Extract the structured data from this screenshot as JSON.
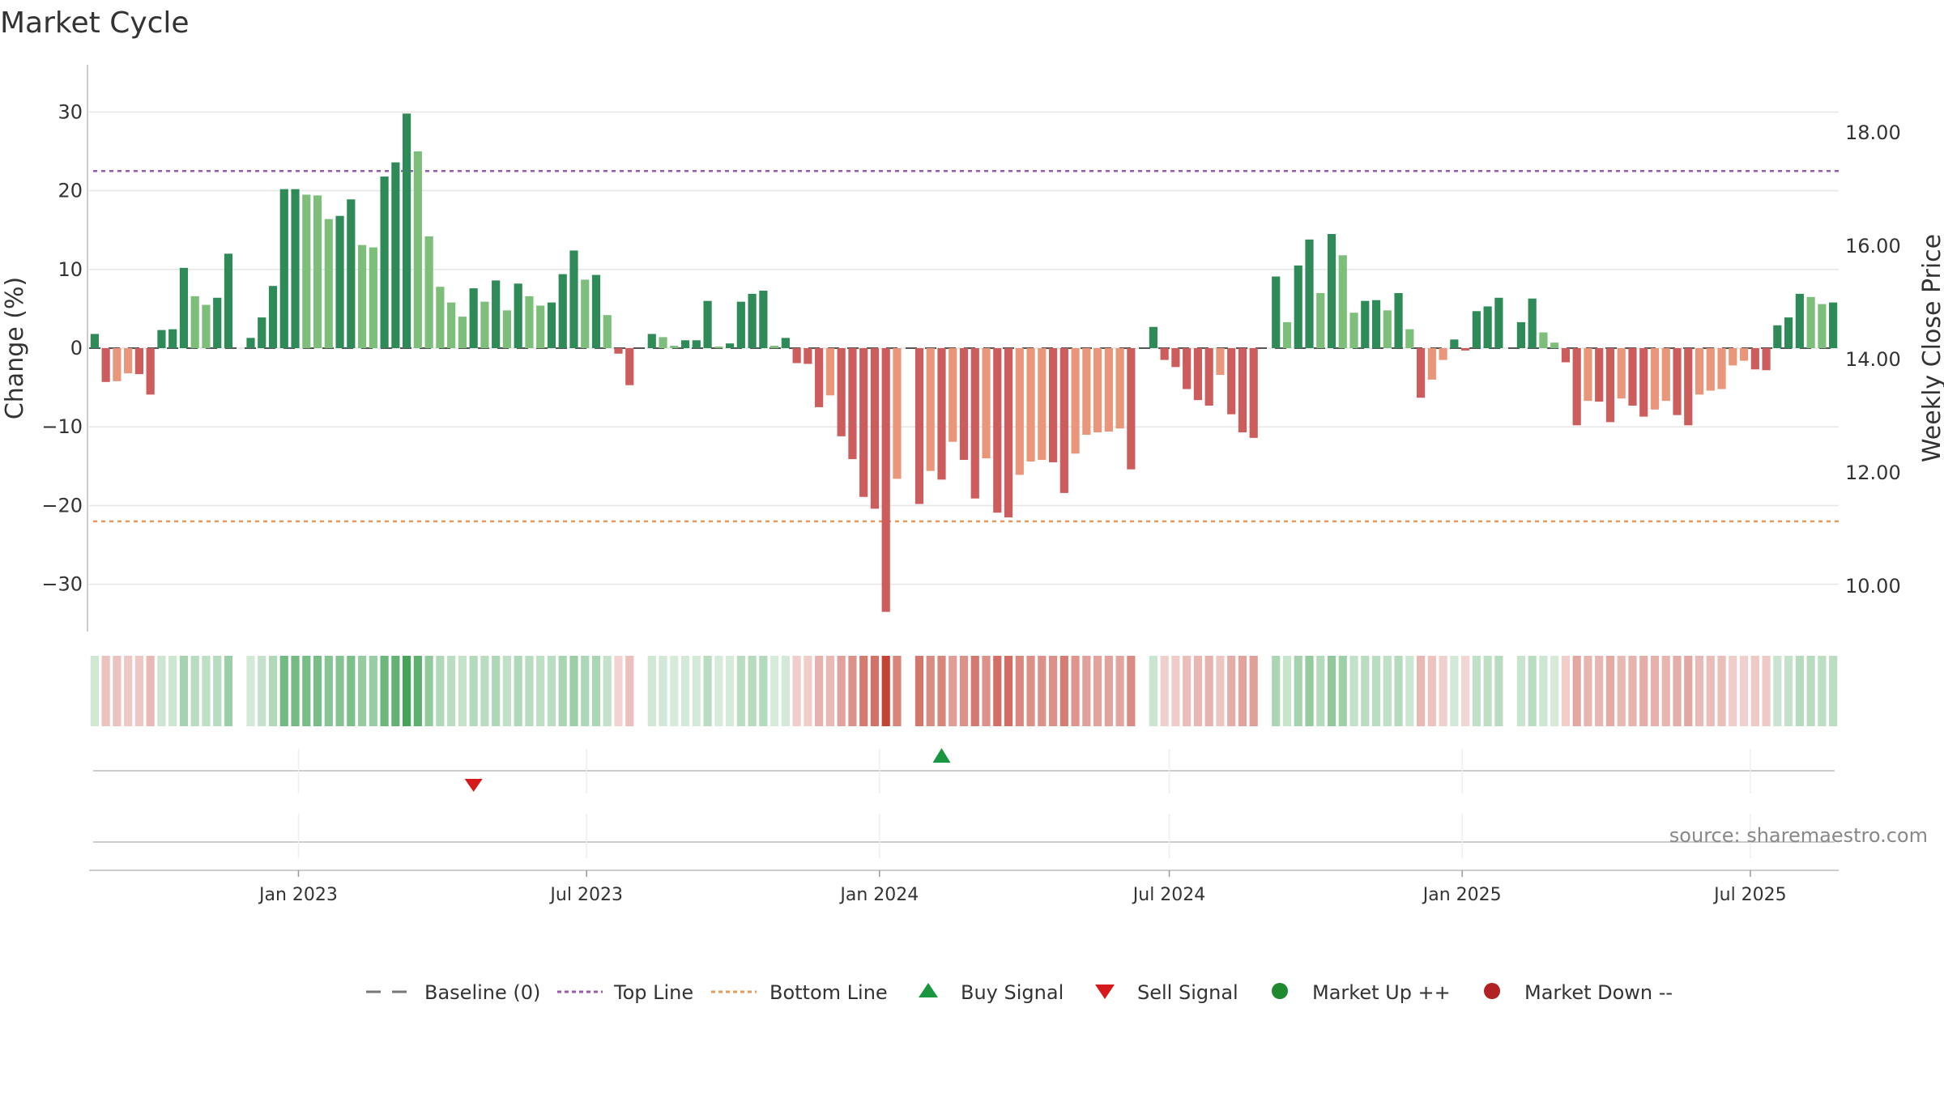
{
  "chart_data": {
    "type": "bar",
    "title": "Market Cycle",
    "ylabel": "Change (%)",
    "y2label": "Weekly Close Price",
    "ylim": [
      -36,
      36
    ],
    "y_ticks": [
      30,
      20,
      10,
      0,
      -10,
      -20,
      -30
    ],
    "y_tick_labels": [
      "30",
      "20",
      "10",
      "0",
      "−10",
      "−20",
      "−30"
    ],
    "y2lim": [
      9.2,
      19.2
    ],
    "y2_ticks": [
      18,
      16,
      14,
      12,
      10
    ],
    "y2_tick_labels": [
      "18.00",
      "16.00",
      "14.00",
      "12.00",
      "10.00"
    ],
    "top_line": 22.5,
    "bottom_line": -22,
    "x_start": "2022-08-26",
    "x_ticks": [
      {
        "date": "2023-01-01",
        "label": "Jan 2023"
      },
      {
        "date": "2023-07-01",
        "label": "Jul 2023"
      },
      {
        "date": "2024-01-01",
        "label": "Jan 2024"
      },
      {
        "date": "2024-07-01",
        "label": "Jul 2024"
      },
      {
        "date": "2025-01-01",
        "label": "Jan 2025"
      },
      {
        "date": "2025-07-01",
        "label": "Jul 2025"
      }
    ],
    "grid": true,
    "values": [
      1.8,
      -4.3,
      -4.2,
      -3.2,
      -3.3,
      -5.9,
      2.3,
      2.4,
      10.2,
      6.6,
      5.5,
      6.4,
      12,
      0,
      1.3,
      3.9,
      7.9,
      20.2,
      20.2,
      19.5,
      19.4,
      16.4,
      16.8,
      18.9,
      13.1,
      12.8,
      21.8,
      23.6,
      29.8,
      25,
      14.2,
      7.8,
      5.8,
      4,
      7.6,
      5.9,
      8.6,
      4.8,
      8.2,
      6.6,
      5.4,
      5.8,
      9.4,
      12.4,
      8.7,
      9.3,
      4.2,
      -0.7,
      -4.7,
      0,
      1.8,
      1.4,
      0.3,
      1,
      1,
      6,
      0.2,
      0.6,
      5.9,
      6.9,
      7.3,
      0.3,
      1.3,
      -1.9,
      -2,
      -7.5,
      -6,
      -11.2,
      -14.1,
      -18.9,
      -20.4,
      -33.5,
      -16.6,
      0,
      -19.8,
      -15.6,
      -16.7,
      -11.9,
      -14.2,
      -19.1,
      -14,
      -20.9,
      -21.5,
      -16.1,
      -14.4,
      -14.2,
      -14.5,
      -18.4,
      -13.4,
      -11,
      -10.7,
      -10.6,
      -10.2,
      -15.4,
      0,
      2.7,
      -1.5,
      -2.4,
      -5.2,
      -6.6,
      -7.3,
      -3.4,
      -8.4,
      -10.7,
      -11.4,
      0,
      9.1,
      3.3,
      10.5,
      13.8,
      7,
      14.5,
      11.8,
      4.5,
      6,
      6.1,
      4.8,
      7,
      2.4,
      -6.3,
      -4,
      -1.5,
      1.1,
      -0.3,
      4.7,
      5.3,
      6.4,
      0,
      3.3,
      6.3,
      2,
      0.7,
      -1.8,
      -9.8,
      -6.7,
      -6.8,
      -9.4,
      -6.4,
      -7.3,
      -8.7,
      -7.8,
      -6.7,
      -8.5,
      -9.8,
      -5.9,
      -5.4,
      -5.2,
      -2.2,
      -1.6,
      -2.7,
      -2.8,
      2.9,
      3.9,
      6.9,
      6.5,
      5.6,
      5.8
    ],
    "signals": [
      {
        "type": "sell",
        "date": "2023-04-21"
      },
      {
        "type": "buy",
        "date": "2024-02-09"
      }
    ],
    "legend": {
      "placement": "bottom",
      "entries": [
        {
          "label": "Baseline (0)",
          "marker": "dash-line",
          "color": "#777777"
        },
        {
          "label": "Top Line",
          "marker": "dotted-line",
          "color": "#9b59b6"
        },
        {
          "label": "Bottom Line",
          "marker": "dotted-line",
          "color": "#e59a5a"
        },
        {
          "label": "Buy Signal",
          "marker": "triangle-up",
          "color": "#1a9641"
        },
        {
          "label": "Sell Signal",
          "marker": "triangle-down",
          "color": "#d7191c"
        },
        {
          "label": "Market Up ++",
          "marker": "circle",
          "color": "#1e8a2e"
        },
        {
          "label": "Market Down --",
          "marker": "circle",
          "color": "#b22222"
        }
      ]
    },
    "source": "source: sharemaestro.com",
    "colors": {
      "up_strong": "#2e8b57",
      "up_light": "#7dbf7a",
      "down_strong": "#cd5c5c",
      "down_light": "#e9967a",
      "heat_up": "#3a9f4f",
      "heat_down": "#c0392b",
      "top_line": "#9b59b6",
      "bottom_line": "#e59a5a",
      "grid": "#e6e6e6",
      "axis": "#cccccc"
    }
  }
}
